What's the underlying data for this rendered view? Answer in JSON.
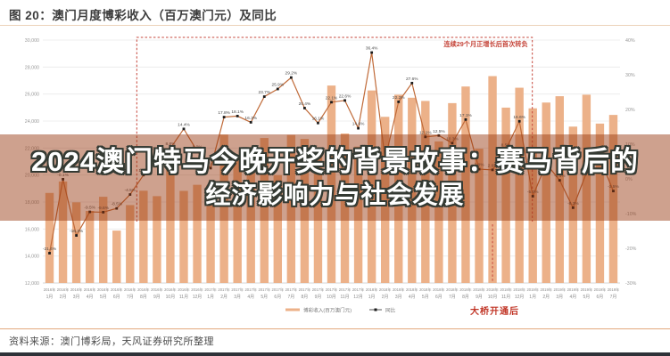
{
  "page": {
    "title": "图 20：澳门月度博彩收入（百万澳门元）及同比",
    "source": "资料来源：澳门博彩局，天风证券研究所整理"
  },
  "banner": {
    "line1": "2024澳门特马今晚开奖的背景故事：赛马背后的",
    "line2": "经济影响力与社会发展",
    "bg_color": "rgba(150,55,15,0.47)"
  },
  "chart_data": {
    "type": "combo-bar-line",
    "title": "澳门月度博彩收入（百万澳门元）及同比",
    "categories": [
      "2016年1月",
      "2016年2月",
      "2016年3月",
      "2016年4月",
      "2016年5月",
      "2016年6月",
      "2016年7月",
      "2016年8月",
      "2016年9月",
      "2016年10月",
      "2016年11月",
      "2016年12月",
      "2017年1月",
      "2017年2月",
      "2017年3月",
      "2017年4月",
      "2017年5月",
      "2017年6月",
      "2017年7月",
      "2017年8月",
      "2017年9月",
      "2017年10月",
      "2017年11月",
      "2017年12月",
      "2018年1月",
      "2018年2月",
      "2018年3月",
      "2018年4月",
      "2018年5月",
      "2018年6月",
      "2018年7月",
      "2018年8月",
      "2018年9月",
      "2018年10月",
      "2018年11月",
      "2018年12月",
      "2019年1月",
      "2019年2月",
      "2019年3月",
      "2019年4月",
      "2019年5月",
      "2019年6月",
      "2019年7月"
    ],
    "bars": {
      "name": "博彩收入(百万澳门元)",
      "axis": "left",
      "values": [
        18674,
        19521,
        17980,
        17340,
        18389,
        15884,
        17773,
        18837,
        18435,
        21807,
        18826,
        19277,
        19255,
        22993,
        21232,
        20164,
        22743,
        19992,
        22965,
        22676,
        21408,
        26630,
        23077,
        22104,
        26265,
        24312,
        25952,
        25727,
        25488,
        22490,
        25327,
        26558,
        21952,
        27328,
        24995,
        26468,
        24942,
        25370,
        25840,
        23588,
        25952,
        23812,
        24453
      ]
    },
    "line": {
      "name": "同比",
      "axis": "right",
      "values": [
        -21.4,
        -0.1,
        -16.3,
        -9.5,
        -9.6,
        -8.5,
        -4.5,
        1.1,
        7.4,
        8.8,
        14.4,
        8.0,
        3.1,
        17.8,
        18.1,
        16.3,
        23.7,
        25.9,
        29.2,
        20.4,
        16.1,
        22.1,
        22.6,
        14.6,
        36.4,
        5.7,
        22.2,
        27.6,
        12.1,
        12.5,
        10.3,
        17.1,
        2.8,
        2.6,
        8.5,
        16.6,
        -5.0,
        4.4,
        -0.4,
        -8.3,
        1.8,
        5.9,
        -3.5
      ]
    },
    "left_axis": {
      "min": 12000,
      "max": 30000,
      "step": 2000,
      "ticks": [
        "12,000",
        "14,000",
        "16,000",
        "18,000",
        "20,000",
        "22,000",
        "24,000",
        "26,000",
        "28,000",
        "30,000"
      ]
    },
    "right_axis": {
      "min": -30,
      "max": 40,
      "step": 10,
      "ticks": [
        "-30%",
        "-20%",
        "-10%",
        "0%",
        "10%",
        "20%",
        "30%",
        "40%"
      ]
    },
    "legend": [
      "博彩收入(百万澳门元)",
      "同比"
    ],
    "legend_position": "bottom",
    "grid": "horizontal",
    "annotations": {
      "dashed_box_text": "连续29个月正增长后首次转负",
      "dashed_box_start_category": "2016年8月",
      "dashed_box_end_category": "2018年12月",
      "bridge_text": "大桥开通后",
      "bridge_category": "2018年10月"
    },
    "colors": {
      "bar": "#ecb189",
      "line": "#c06a38",
      "marker": "#1c1c1c",
      "annotation": "#c5453a",
      "grid": "#eaeaea",
      "axis_text": "#999999",
      "label_text": "#4a4a4a"
    }
  }
}
